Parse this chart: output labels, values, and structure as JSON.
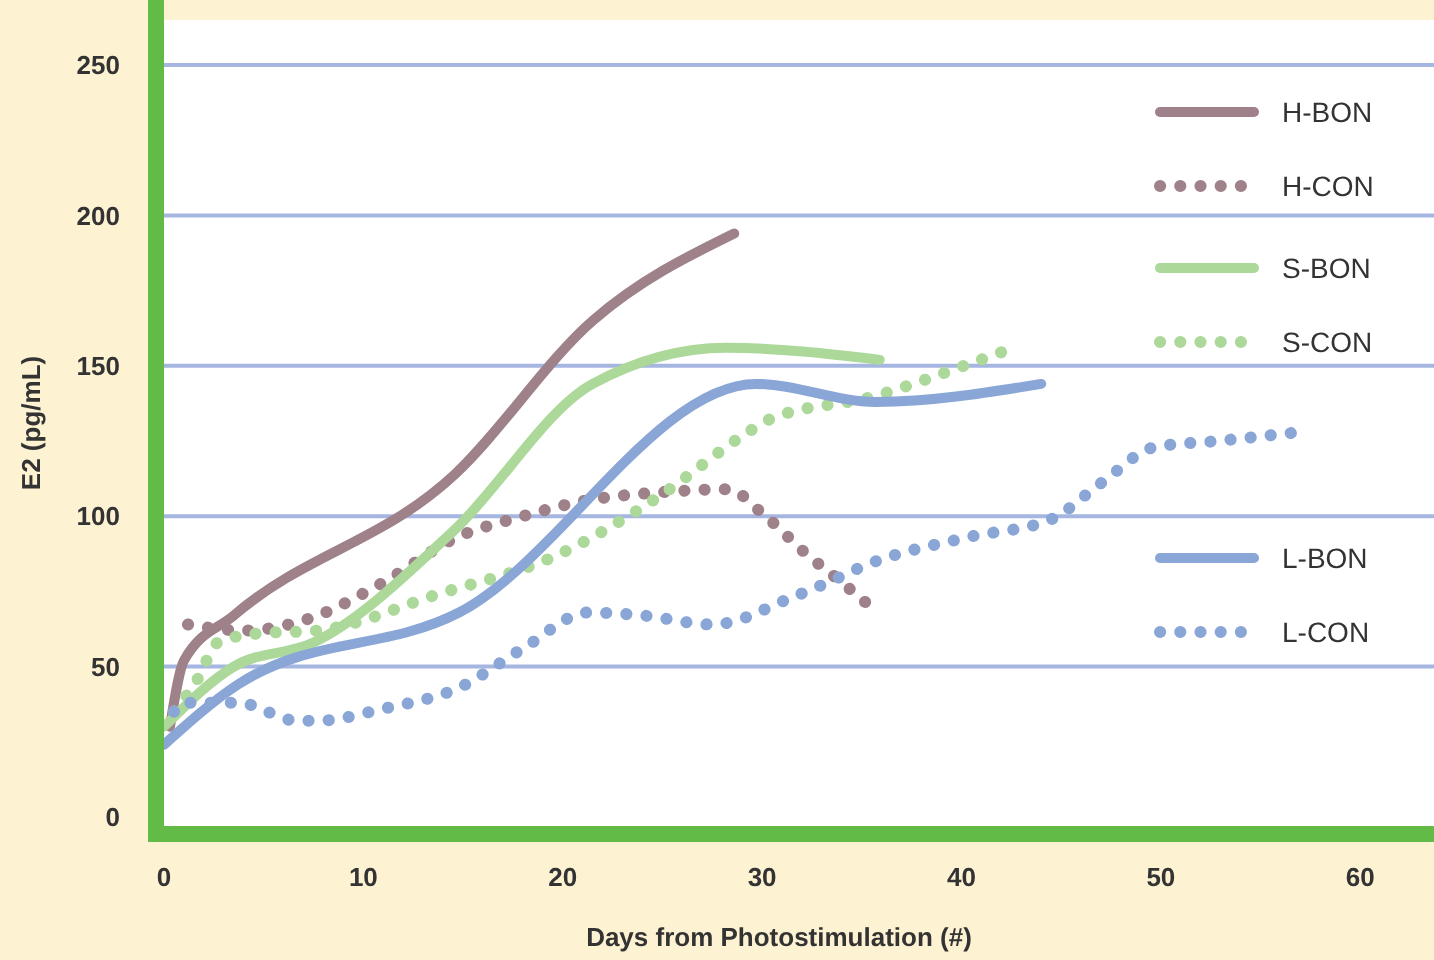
{
  "chart_data": {
    "type": "line",
    "xlabel": "Days from Photostimulation (#)",
    "ylabel": "E2 (pg/mL)",
    "xlim": [
      0,
      63.7
    ],
    "ylim": [
      -3,
      265
    ],
    "xticks": [
      0,
      10,
      20,
      30,
      40,
      50,
      60
    ],
    "yticks": [
      0,
      50,
      100,
      150,
      200,
      250
    ],
    "grid": "y",
    "legend": "top right",
    "series": [
      {
        "name": "H-BON",
        "color": "#9e8189",
        "line_style": "solid",
        "x": [
          0.3,
          1,
          3.5,
          14.6,
          21.5,
          28.6
        ],
        "values": [
          30,
          52,
          67,
          114,
          165,
          194
        ]
      },
      {
        "name": "H-CON",
        "color": "#9e8189",
        "line_style": "dotted",
        "x": [
          1.2,
          4,
          7.3,
          11,
          14.7,
          18,
          21,
          25,
          28.3,
          30,
          32.3,
          34,
          35.6
        ],
        "values": [
          64,
          62,
          66,
          78,
          93,
          100,
          105,
          108,
          109,
          101,
          87,
          78,
          69
        ]
      },
      {
        "name": "S-BON",
        "color": "#acd89a",
        "line_style": "solid",
        "x": [
          0,
          3.5,
          7.5,
          14.5,
          21.5,
          28.2,
          35.9
        ],
        "values": [
          30,
          50,
          58,
          95,
          144,
          156,
          152
        ]
      },
      {
        "name": "S-CON",
        "color": "#acd89a",
        "line_style": "dotted",
        "x": [
          0.5,
          1.7,
          2.7,
          4.7,
          7.7,
          13.7,
          19.7,
          24.7,
          29.3,
          30.3,
          35.7,
          39.7,
          42.6
        ],
        "values": [
          35,
          46,
          58,
          61,
          62,
          74,
          87,
          106,
          128,
          132,
          140,
          149,
          156
        ]
      },
      {
        "name": "L-BON",
        "color": "#8aa6d6",
        "line_style": "solid",
        "x": [
          0,
          3.7,
          14.8,
          29.7,
          35.7,
          44
        ],
        "values": [
          24,
          44,
          68,
          144,
          138,
          144
        ]
      },
      {
        "name": "L-CON",
        "color": "#8aa6d6",
        "line_style": "dotted",
        "x": [
          0.5,
          1,
          3.7,
          6.7,
          7.7,
          11,
          14.8,
          18,
          21.3,
          24,
          27.5,
          31.5,
          33.3,
          35.3,
          40.3,
          44.5,
          47,
          49.7,
          52.8,
          57
        ],
        "values": [
          35,
          38,
          38,
          32,
          32,
          36,
          43,
          56,
          68,
          67,
          64,
          73,
          78,
          84,
          93,
          99,
          111,
          123,
          125,
          128
        ]
      }
    ]
  }
}
